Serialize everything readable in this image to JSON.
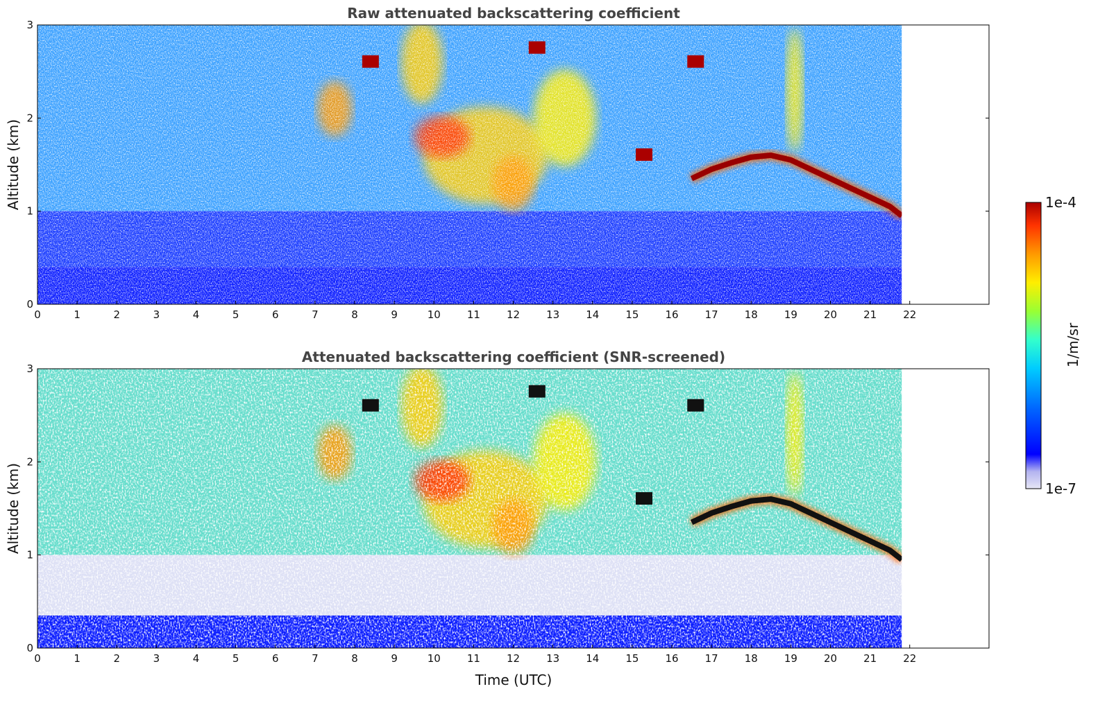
{
  "chart_data": [
    {
      "type": "heatmap",
      "title": "Raw attenuated backscattering coefficient",
      "xlabel": "",
      "ylabel": "Altitude (km)",
      "xlim": [
        0,
        24
      ],
      "ylim": [
        0,
        3
      ],
      "x_ticks": [
        0,
        1,
        2,
        3,
        4,
        5,
        6,
        7,
        8,
        9,
        10,
        11,
        12,
        13,
        14,
        15,
        16,
        17,
        18,
        19,
        20,
        21,
        22
      ],
      "y_ticks": [
        0,
        1,
        2,
        3
      ],
      "data_extent_x": [
        0,
        21.8
      ],
      "grid": false,
      "features": {
        "boundary_layer_top_km": 0.4,
        "aerosol_layer_km": [
          1.0,
          2.9
        ],
        "cloud_layer": {
          "time": [
            16.5,
            17.0,
            17.5,
            18.0,
            18.5,
            19.0,
            19.5,
            20.0,
            20.5,
            21.0,
            21.5,
            21.8
          ],
          "altitude_km": [
            1.35,
            1.45,
            1.52,
            1.58,
            1.6,
            1.55,
            1.45,
            1.35,
            1.25,
            1.15,
            1.05,
            0.95
          ]
        }
      }
    },
    {
      "type": "heatmap",
      "title": "Attenuated backscattering coefficient (SNR-screened)",
      "xlabel": "Time (UTC)",
      "ylabel": "Altitude (km)",
      "xlim": [
        0,
        24
      ],
      "ylim": [
        0,
        3
      ],
      "x_ticks": [
        0,
        1,
        2,
        3,
        4,
        5,
        6,
        7,
        8,
        9,
        10,
        11,
        12,
        13,
        14,
        15,
        16,
        17,
        18,
        19,
        20,
        21,
        22
      ],
      "y_ticks": [
        0,
        1,
        2,
        3
      ],
      "data_extent_x": [
        0,
        21.8
      ],
      "grid": false,
      "features": {
        "boundary_layer_top_km": 0.35,
        "aerosol_layer_km": [
          1.0,
          2.9
        ],
        "cloud_layer": {
          "time": [
            16.5,
            17.0,
            17.5,
            18.0,
            18.5,
            19.0,
            19.5,
            20.0,
            20.5,
            21.0,
            21.5,
            21.8
          ],
          "altitude_km": [
            1.35,
            1.45,
            1.52,
            1.58,
            1.6,
            1.55,
            1.45,
            1.35,
            1.25,
            1.15,
            1.05,
            0.95
          ]
        }
      }
    }
  ],
  "colorbar": {
    "label": "1/m/sr",
    "max_label": "1e-4",
    "min_label": "1e-7",
    "scale": "log",
    "colors": [
      "#e6e6f5",
      "#b3b3f0",
      "#0000ff",
      "#0066ff",
      "#00ccff",
      "#33ffcc",
      "#99ff33",
      "#ffee00",
      "#ff9900",
      "#ff3300",
      "#aa0000"
    ]
  }
}
